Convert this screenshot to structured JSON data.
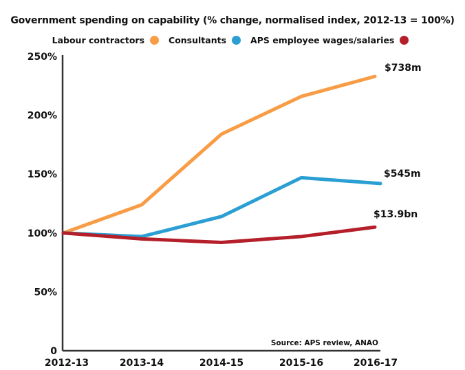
{
  "chart_data": {
    "type": "line",
    "title": "Government spending on capability (% change, normalised index, 2012-13 = 100%)",
    "xlabel": "",
    "ylabel": "",
    "categories": [
      "2012-13",
      "2013-14",
      "2014-15",
      "2015-16",
      "2016-17"
    ],
    "y_ticks": [
      {
        "value": 0,
        "label": "0"
      },
      {
        "value": 50,
        "label": "50%"
      },
      {
        "value": 100,
        "label": "100%"
      },
      {
        "value": 150,
        "label": "150%"
      },
      {
        "value": 200,
        "label": "200%"
      },
      {
        "value": 250,
        "label": "250%"
      }
    ],
    "ylim": [
      0,
      250
    ],
    "grid": false,
    "legend_position": "top-center",
    "series": [
      {
        "name": "Labour contractors",
        "color": "#f89c45",
        "values": [
          100,
          124,
          184,
          216,
          233
        ],
        "end_label": "$738m"
      },
      {
        "name": "Consultants",
        "color": "#2b9fd3",
        "values": [
          100,
          97,
          114,
          147,
          142
        ],
        "end_label": "$545m"
      },
      {
        "name": "APS employee wages/salaries",
        "color": "#b41f2a",
        "values": [
          100,
          95,
          92,
          97,
          105
        ],
        "end_label": "$13.9bn"
      }
    ],
    "annotations": [
      "Source: APS review, ANAO"
    ]
  }
}
